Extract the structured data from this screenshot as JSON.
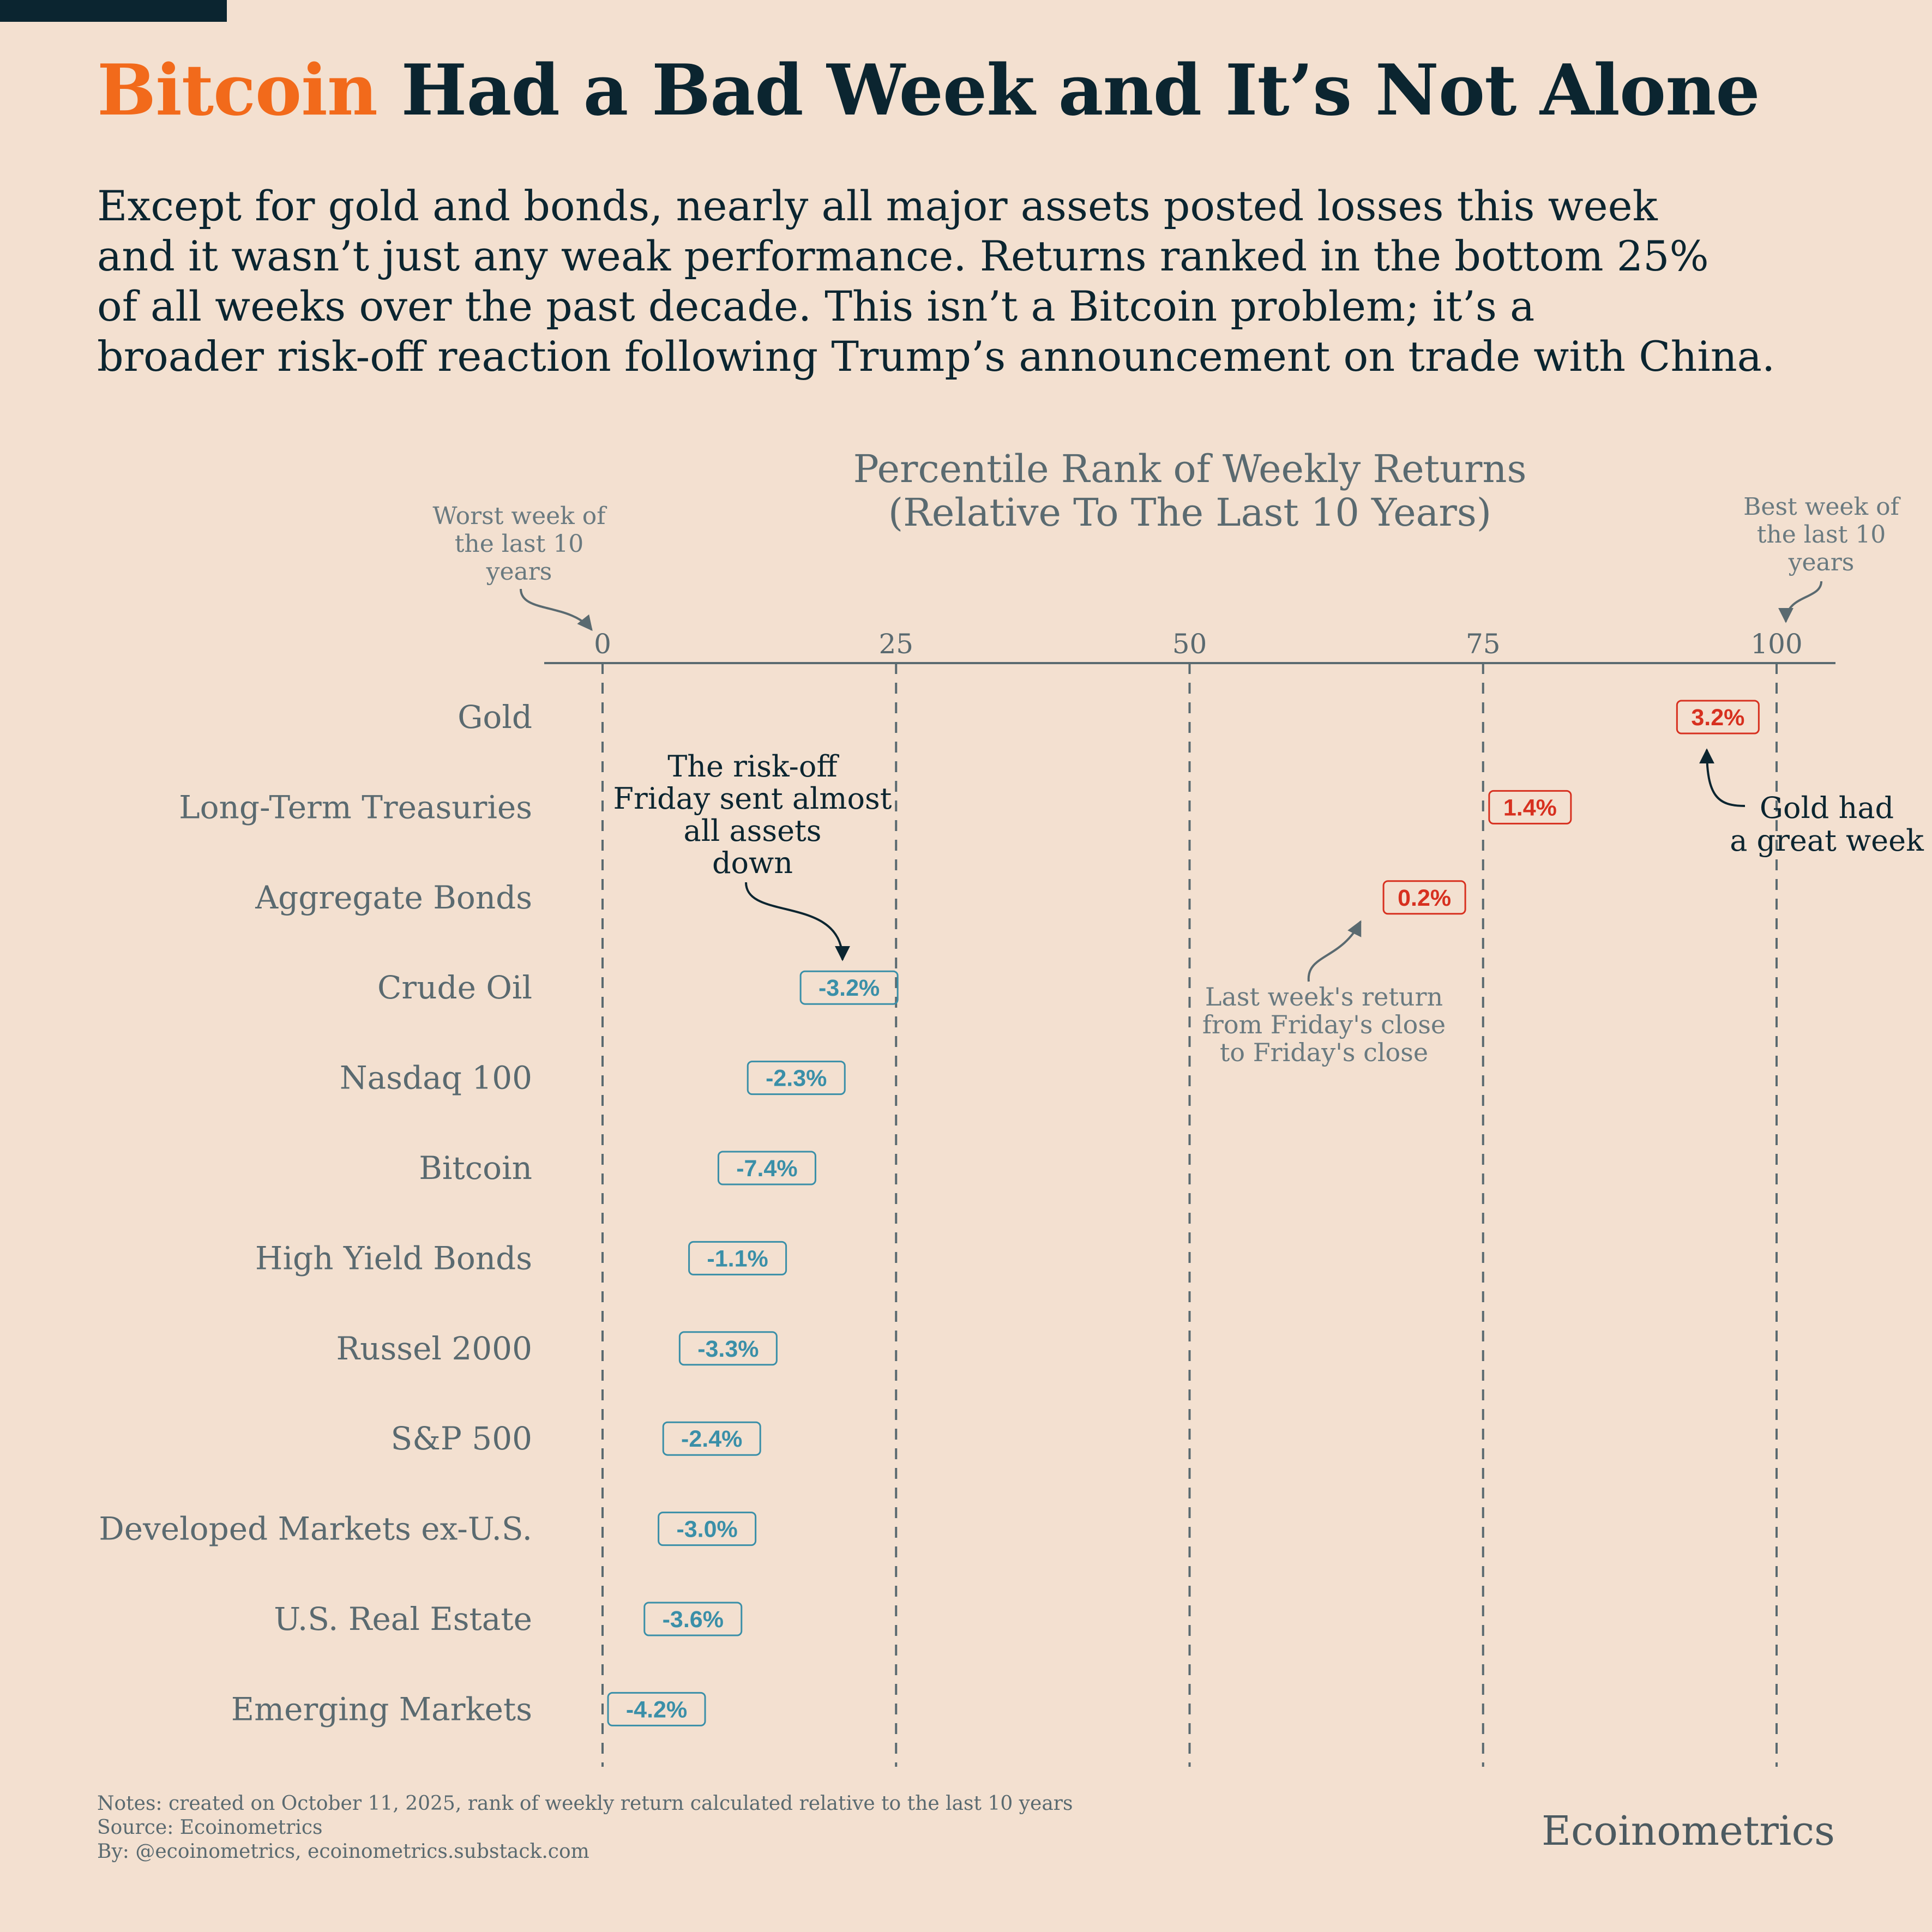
{
  "header": {
    "title_highlight": "Bitcoin",
    "title_rest": " Had a Bad Week and It’s Not Alone",
    "subtitle_lines": [
      "Except for gold and bonds, nearly all major assets posted losses this week",
      "and it wasn’t just any weak performance. Returns ranked in the bottom 25%",
      "of all weeks over the past decade. This isn’t a Bitcoin problem; it’s a",
      "broader risk-off reaction following Trump’s announcement on trade with China."
    ]
  },
  "chart_data": {
    "type": "scatter",
    "title_lines": [
      "Percentile Rank of Weekly Returns",
      "(Relative To The Last 10 Years)"
    ],
    "xlim": [
      0,
      100
    ],
    "xticks": [
      "0",
      "25",
      "50",
      "75",
      "100"
    ],
    "tick_values": [
      0,
      25,
      50,
      75,
      100
    ],
    "grid": "vertical dashed at ticks",
    "categories": [
      "Gold",
      "Long-Term Treasuries",
      "Aggregate Bonds",
      "Crude Oil",
      "Nasdaq 100",
      "Bitcoin",
      "High Yield Bonds",
      "Russel 2000",
      "S&P 500",
      "Developed Markets ex-U.S.",
      "U.S. Real Estate",
      "Emerging Markets"
    ],
    "percentile_rank": [
      95,
      79,
      70,
      21,
      16.5,
      14,
      11.5,
      10.7,
      9.3,
      8.9,
      7.7,
      4.6
    ],
    "weekly_return_labels": [
      "3.2%",
      "1.4%",
      "0.2%",
      "-3.2%",
      "-2.3%",
      "-7.4%",
      "-1.1%",
      "-3.3%",
      "-2.4%",
      "-3.0%",
      "-3.6%",
      "-4.2%"
    ],
    "annotations": {
      "worst": [
        "Worst week of",
        "the last 10",
        "years"
      ],
      "best": [
        "Best week of",
        "the last 10",
        "years"
      ],
      "risk_off": [
        "The risk-off",
        "Friday sent almost",
        "all assets",
        "down"
      ],
      "gold": [
        "Gold had",
        "a great week"
      ],
      "last_week": [
        "Last week's return",
        "from Friday's close",
        "to Friday's close"
      ]
    },
    "colors": {
      "positive": "#d7301f",
      "negative": "#3a8fa8",
      "axis": "#5a6a70",
      "label": "#5a6a70",
      "annotation_dark": "#0b2530",
      "annotation_muted": "#6a7a80"
    }
  },
  "footer": {
    "notes": [
      "Notes: created on October 11, 2025, rank of weekly return calculated relative to the last 10 years",
      "Source: Ecoinometrics",
      "By: @ecoinometrics, ecoinometrics.substack.com"
    ],
    "brand": "Ecoinometrics"
  }
}
